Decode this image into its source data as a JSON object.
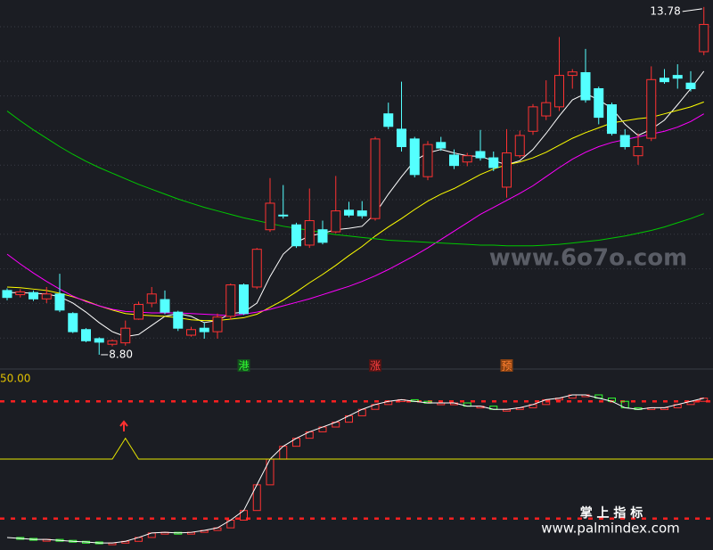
{
  "chart_data": [
    {
      "type": "candlestick",
      "categories": [
        null,
        null,
        null,
        null,
        null,
        null,
        null,
        null,
        null,
        null,
        null,
        null,
        null,
        null,
        null,
        null,
        null,
        null,
        "港",
        null,
        null,
        null,
        null,
        null,
        null,
        null,
        null,
        null,
        "涨",
        null,
        null,
        null,
        null,
        null,
        null,
        null,
        null,
        null,
        "预",
        null,
        null,
        null,
        null,
        null,
        null,
        null,
        null,
        null,
        null,
        null,
        null,
        null,
        null,
        null
      ],
      "open": [
        9.72,
        9.66,
        9.69,
        9.6,
        9.67,
        9.39,
        9.16,
        9.03,
        8.95,
        8.97,
        9.31,
        9.54,
        9.59,
        9.41,
        9.08,
        9.18,
        9.13,
        9.35,
        9.8,
        9.77,
        10.59,
        10.8,
        10.66,
        10.37,
        10.59,
        10.56,
        10.87,
        10.86,
        10.75,
        12.25,
        12.03,
        11.89,
        11.35,
        11.84,
        11.66,
        11.56,
        11.71,
        11.62,
        11.2,
        11.65,
        12.0,
        12.22,
        12.35,
        12.8,
        12.84,
        12.61,
        12.38,
        11.94,
        11.65,
        11.9,
        12.76,
        12.8,
        12.69,
        13.14
      ],
      "high": [
        9.75,
        9.74,
        9.72,
        9.77,
        9.96,
        9.41,
        9.18,
        9.05,
        9.02,
        9.29,
        9.56,
        9.77,
        9.72,
        9.43,
        9.2,
        9.26,
        9.39,
        9.82,
        9.82,
        10.33,
        11.33,
        11.23,
        10.69,
        11.18,
        10.72,
        11.36,
        10.99,
        11.0,
        11.92,
        12.41,
        12.71,
        11.92,
        11.86,
        11.92,
        11.74,
        11.69,
        12.02,
        11.71,
        12.03,
        12.01,
        12.39,
        12.73,
        13.35,
        12.89,
        13.18,
        12.64,
        12.41,
        12.03,
        11.97,
        12.93,
        12.89,
        12.96,
        12.86,
        13.78
      ],
      "low": [
        9.58,
        9.62,
        9.57,
        9.54,
        9.41,
        9.11,
        8.98,
        8.8,
        8.92,
        8.93,
        9.3,
        9.48,
        9.38,
        9.14,
        9.06,
        9.03,
        9.03,
        9.3,
        9.37,
        9.74,
        10.56,
        10.75,
        10.33,
        10.33,
        10.38,
        10.54,
        10.77,
        10.75,
        10.72,
        12.03,
        11.71,
        11.34,
        11.3,
        11.72,
        11.46,
        11.5,
        11.58,
        11.43,
        11.05,
        11.62,
        11.95,
        12.16,
        12.29,
        12.61,
        12.41,
        12.1,
        11.94,
        11.74,
        11.52,
        11.86,
        12.68,
        12.61,
        12.57,
        13.09
      ],
      "close": [
        9.62,
        9.7,
        9.6,
        9.67,
        9.44,
        9.13,
        9.0,
        8.98,
        9.0,
        9.18,
        9.52,
        9.67,
        9.41,
        9.18,
        9.16,
        9.13,
        9.34,
        9.8,
        9.39,
        10.31,
        10.97,
        10.79,
        10.36,
        10.72,
        10.41,
        10.86,
        10.8,
        10.79,
        11.89,
        12.07,
        11.78,
        11.38,
        11.81,
        11.76,
        11.51,
        11.65,
        11.62,
        11.48,
        11.69,
        11.94,
        12.35,
        12.41,
        12.8,
        12.85,
        12.45,
        12.2,
        11.97,
        11.78,
        11.78,
        12.74,
        12.71,
        12.76,
        12.61,
        13.53
      ],
      "up_color": "#ff3232",
      "down_color": "#54ffff",
      "ylim": [
        8.71,
        13.88
      ],
      "annotations": [
        {
          "label": "13.78",
          "value": 13.78
        },
        {
          "label": "8.80",
          "value": 8.8
        }
      ],
      "series": [
        {
          "color": "#ffffff",
          "values": [
            9.69,
            9.69,
            9.68,
            9.67,
            9.63,
            9.54,
            9.41,
            9.26,
            9.13,
            9.06,
            9.09,
            9.22,
            9.35,
            9.39,
            9.35,
            9.26,
            9.29,
            9.39,
            9.41,
            9.54,
            9.92,
            10.24,
            10.41,
            10.5,
            10.54,
            10.59,
            10.61,
            10.64,
            10.82,
            11.1,
            11.35,
            11.58,
            11.69,
            11.74,
            11.69,
            11.65,
            11.64,
            11.58,
            11.52,
            11.58,
            11.74,
            11.97,
            12.22,
            12.45,
            12.54,
            12.45,
            12.33,
            12.1,
            11.94,
            12.03,
            12.16,
            12.38,
            12.61,
            12.86
          ]
        },
        {
          "color": "#ffff00",
          "values": [
            9.77,
            9.76,
            9.74,
            9.72,
            9.68,
            9.63,
            9.57,
            9.5,
            9.44,
            9.39,
            9.37,
            9.36,
            9.35,
            9.33,
            9.3,
            9.29,
            9.29,
            9.31,
            9.33,
            9.38,
            9.48,
            9.58,
            9.7,
            9.83,
            9.95,
            10.08,
            10.22,
            10.35,
            10.5,
            10.63,
            10.75,
            10.88,
            11.0,
            11.1,
            11.18,
            11.28,
            11.38,
            11.46,
            11.52,
            11.56,
            11.62,
            11.7,
            11.8,
            11.9,
            11.98,
            12.05,
            12.12,
            12.15,
            12.18,
            12.2,
            12.25,
            12.3,
            12.35,
            12.42
          ]
        },
        {
          "color": "#ff00ff",
          "values": [
            10.24,
            10.1,
            9.97,
            9.85,
            9.74,
            9.64,
            9.56,
            9.5,
            9.45,
            9.42,
            9.41,
            9.4,
            9.4,
            9.4,
            9.39,
            9.38,
            9.37,
            9.36,
            9.38,
            9.41,
            9.45,
            9.5,
            9.55,
            9.6,
            9.66,
            9.72,
            9.78,
            9.85,
            9.93,
            10.02,
            10.12,
            10.22,
            10.33,
            10.45,
            10.57,
            10.69,
            10.81,
            10.91,
            11.01,
            11.11,
            11.22,
            11.35,
            11.48,
            11.6,
            11.7,
            11.78,
            11.84,
            11.88,
            11.92,
            11.96,
            12.0,
            12.06,
            12.14,
            12.25
          ]
        },
        {
          "color": "#00c800",
          "values": [
            12.29,
            12.15,
            12.02,
            11.9,
            11.78,
            11.67,
            11.57,
            11.48,
            11.4,
            11.32,
            11.24,
            11.17,
            11.1,
            11.03,
            10.97,
            10.91,
            10.86,
            10.81,
            10.76,
            10.72,
            10.68,
            10.64,
            10.61,
            10.58,
            10.55,
            10.52,
            10.5,
            10.48,
            10.46,
            10.44,
            10.43,
            10.42,
            10.41,
            10.4,
            10.39,
            10.38,
            10.37,
            10.37,
            10.36,
            10.36,
            10.36,
            10.37,
            10.38,
            10.4,
            10.42,
            10.44,
            10.47,
            10.5,
            10.54,
            10.58,
            10.63,
            10.69,
            10.75,
            10.82
          ]
        }
      ]
    },
    {
      "type": "line",
      "ylim": [
        -3.3,
        50
      ],
      "yticks": [
        {
          "value": 50,
          "label": "50.00"
        }
      ],
      "hlines": [
        43,
        6.5
      ],
      "hline_color": "#ff2020",
      "up_color": "#ff3232",
      "down_color": "#32ff32",
      "series": [
        {
          "color": "#ffffff",
          "values": [
            0.6,
            0.3,
            0,
            0,
            -0.3,
            -0.6,
            -0.8,
            -1.1,
            -1.1,
            -0.6,
            0.6,
            2.0,
            2.2,
            2.0,
            2.2,
            2.8,
            3.6,
            6.0,
            9.0,
            17,
            25,
            29,
            31.5,
            33.5,
            35,
            36.5,
            38.5,
            40.5,
            42,
            43,
            43.5,
            43,
            42.5,
            42.5,
            42.5,
            41.5,
            41.5,
            40.5,
            40.5,
            41,
            42,
            43.5,
            44,
            45,
            45,
            44,
            43,
            41,
            40.5,
            41,
            41,
            42,
            43,
            44
          ]
        },
        {
          "color": "#e6e600",
          "values": [
            25,
            25,
            25,
            25,
            25,
            25,
            25,
            25,
            25,
            31.5,
            25,
            25,
            25,
            25,
            25,
            25,
            25,
            25,
            25,
            25,
            25,
            25,
            25,
            25,
            25,
            25,
            25,
            25,
            25,
            25,
            25,
            25,
            25,
            25,
            25,
            25,
            25,
            25,
            25,
            25,
            25,
            25,
            25,
            25,
            25,
            25,
            25,
            25,
            25,
            25,
            25,
            25,
            25,
            25
          ]
        }
      ]
    }
  ],
  "watermarks": {
    "site": "www.6o7o.com",
    "brand": "掌 上 指 标",
    "brand_site": "www.palmindex.com"
  }
}
